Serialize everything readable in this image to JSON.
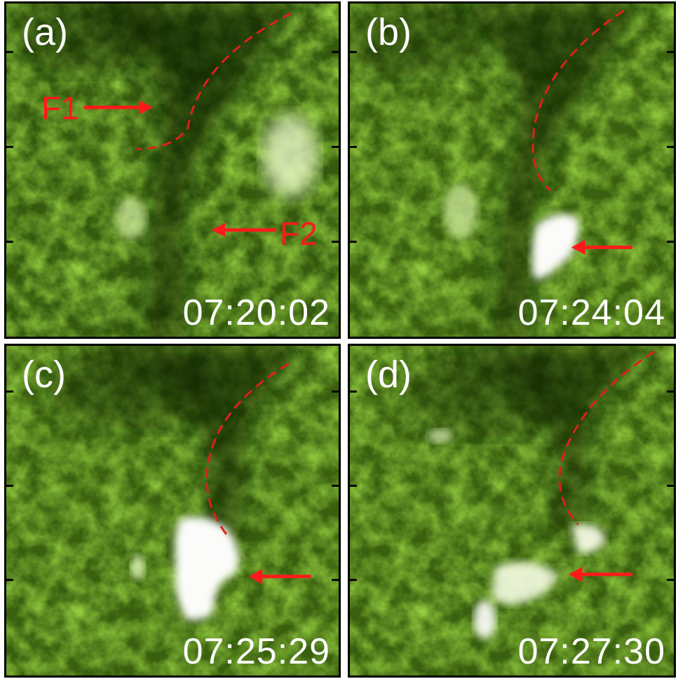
{
  "panels": [
    {
      "label": "(a)",
      "time": "07:20:02",
      "annotations": [
        "F1",
        "F2"
      ]
    },
    {
      "label": "(b)",
      "time": "07:24:04"
    },
    {
      "label": "(c)",
      "time": "07:25:29"
    },
    {
      "label": "(d)",
      "time": "07:27:30"
    }
  ],
  "colors": {
    "annotation": "#ff1a1a",
    "dashed_line": "#e0201a",
    "text": "#ffffff",
    "background_green": "#4a7a14"
  }
}
